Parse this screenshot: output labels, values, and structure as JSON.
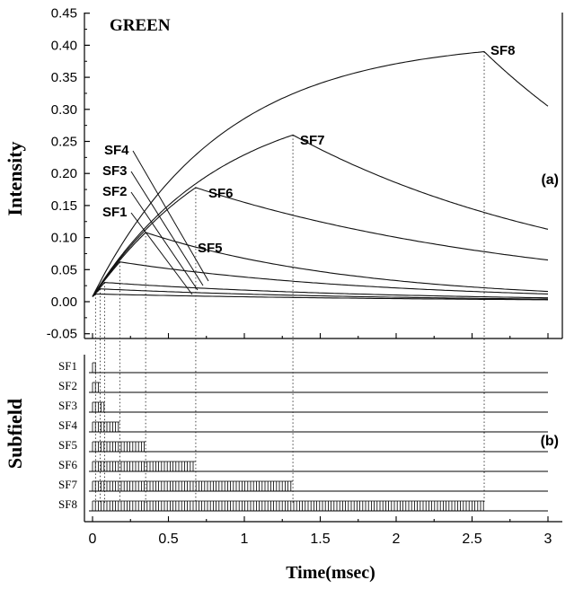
{
  "chart_data": [
    {
      "type": "line",
      "title": "GREEN",
      "panel_label": "(a)",
      "ylabel": "Intensity",
      "xlim": [
        -0.05,
        3.05
      ],
      "ylim": [
        -0.05,
        0.45
      ],
      "y_ticks": [
        "-0.05",
        "0.00",
        "0.05",
        "0.10",
        "0.15",
        "0.20",
        "0.25",
        "0.30",
        "0.35",
        "0.40",
        "0.45"
      ],
      "grid": false,
      "series": [
        {
          "name": "SF1",
          "peak_time": 0.02,
          "peak_value": 0.012
        },
        {
          "name": "SF2",
          "peak_time": 0.05,
          "peak_value": 0.02
        },
        {
          "name": "SF3",
          "peak_time": 0.08,
          "peak_value": 0.03
        },
        {
          "name": "SF4",
          "peak_time": 0.18,
          "peak_value": 0.062
        },
        {
          "name": "SF5",
          "peak_time": 0.35,
          "peak_value": 0.108
        },
        {
          "name": "SF6",
          "peak_time": 0.68,
          "peak_value": 0.178
        },
        {
          "name": "SF7",
          "peak_time": 1.32,
          "peak_value": 0.26
        },
        {
          "name": "SF8",
          "peak_time": 2.58,
          "peak_value": 0.39
        }
      ],
      "end_values_at_3": [
        0.003,
        0.004,
        0.006,
        0.012,
        0.016,
        0.065,
        0.113,
        0.305
      ],
      "annotations": [
        "SF1",
        "SF2",
        "SF3",
        "SF4",
        "SF5",
        "SF6",
        "SF7",
        "SF8"
      ]
    },
    {
      "type": "bar",
      "panel_label": "(b)",
      "ylabel": "Subfield",
      "xlabel": "Time(msec)",
      "xlim": [
        -0.05,
        3.05
      ],
      "x_ticks": [
        "0",
        "0.5",
        "1",
        "1.5",
        "2",
        "2.5",
        "3"
      ],
      "rows": [
        {
          "name": "SF1",
          "start": 0.0,
          "end": 0.02
        },
        {
          "name": "SF2",
          "start": 0.0,
          "end": 0.05
        },
        {
          "name": "SF3",
          "start": 0.0,
          "end": 0.08
        },
        {
          "name": "SF4",
          "start": 0.0,
          "end": 0.18
        },
        {
          "name": "SF5",
          "start": 0.0,
          "end": 0.35
        },
        {
          "name": "SF6",
          "start": 0.0,
          "end": 0.68
        },
        {
          "name": "SF7",
          "start": 0.0,
          "end": 1.32
        },
        {
          "name": "SF8",
          "start": 0.0,
          "end": 2.58
        }
      ],
      "baseline_end": 3.0
    }
  ],
  "labels": {
    "title": "GREEN",
    "ylabel_top": "Intensity",
    "ylabel_bottom": "Subfield",
    "xlabel": "Time(msec)",
    "panel_a": "(a)",
    "panel_b": "(b)"
  }
}
